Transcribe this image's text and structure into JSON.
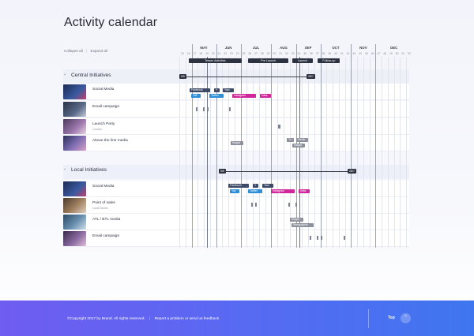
{
  "title": "Activity calendar",
  "controls": {
    "collapse_all": "Collapse all",
    "expand_all": "Expand all"
  },
  "months": [
    "MAY",
    "JUN",
    "JUL",
    "AUG",
    "SEP",
    "OCT",
    "NOV",
    "DEC"
  ],
  "weeks": [
    "15",
    "16",
    "17",
    "18",
    "19",
    "20",
    "21",
    "22",
    "23",
    "24",
    "25",
    "26",
    "27",
    "28",
    "29",
    "30",
    "31",
    "32",
    "33",
    "34",
    "35",
    "36",
    "37",
    "38",
    "39",
    "40",
    "41",
    "42",
    "43",
    "44",
    "45",
    "46",
    "47",
    "48",
    "49",
    "50",
    "51",
    "52"
  ],
  "phases": [
    "Teaser Activities",
    "Pre Launch",
    "Launch",
    "Follow-up"
  ],
  "sections": [
    {
      "title": "Central Initiatives",
      "range_start": "5/5",
      "range_end": "28/7",
      "rows": [
        {
          "label": "Social Media",
          "sub": "",
          "thumb_color": "#2b3a6b",
          "bars": [
            "Facebook",
            "Y",
            "Yam",
            "Yali",
            "Twitter",
            "Instagram",
            "Insta"
          ]
        },
        {
          "label": "Email campaign",
          "sub": "",
          "thumb_color": "#3a4660",
          "bars": []
        },
        {
          "label": "Launch Party",
          "sub": "London",
          "thumb_color": "#7c5a8a",
          "bars": []
        },
        {
          "label": "Above the line media",
          "sub": "",
          "thumb_color": "#5b6e8a",
          "bars": [
            "Magaz",
            "Tv",
            "Media",
            "Magaz"
          ]
        }
      ]
    },
    {
      "title": "Local Initiatives",
      "range_start": "5/6",
      "range_end": "28/7",
      "rows": [
        {
          "label": "Social Media",
          "sub": "",
          "thumb_color": "#2b3a6b",
          "bars": [
            "Facebook",
            "Y",
            "Yam",
            "Yali",
            "Twitter",
            "Instagram",
            "Insta"
          ]
        },
        {
          "label": "Point of sales",
          "sub": "Local Stores",
          "thumb_color": "#6a5a4a",
          "bars": []
        },
        {
          "label": "ATL / BTL media",
          "sub": "",
          "thumb_color": "#3e5a74",
          "bars": [
            "Magaz",
            "Newspapers"
          ]
        },
        {
          "label": "Email campaign",
          "sub": "",
          "thumb_color": "#4a3a5a",
          "bars": []
        }
      ]
    }
  ],
  "footer": {
    "copyright": "©Copyright 2017 by Brand. All rights reserved.",
    "report": "Report a problem or send us feedback",
    "top": "Top",
    "top_icon": "chevron-up-icon"
  },
  "colors": {
    "accent_blue": "#2f8fd6",
    "accent_pink": "#d1279c",
    "dark": "#2d3240",
    "footer_start": "#6f5cf0",
    "footer_end": "#3f76f0"
  }
}
